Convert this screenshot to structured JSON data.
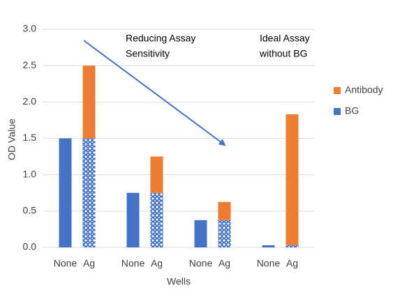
{
  "chart_data": {
    "type": "stacked_bar",
    "categories": [
      "None",
      "Ag",
      "None",
      "Ag",
      "None",
      "Ag",
      "None",
      "Ag"
    ],
    "series": [
      {
        "name": "BG",
        "color": "#4472c4",
        "values": [
          1.5,
          1.5,
          0.75,
          0.75,
          0.375,
          0.375,
          0.03,
          0.03
        ]
      },
      {
        "name": "Antibody",
        "color": "#ed7d31",
        "values": [
          null,
          1.0,
          null,
          0.5,
          null,
          0.25,
          null,
          1.8
        ]
      }
    ],
    "y_label": "OD Value",
    "x_label": "Wells",
    "ylim": [
      0,
      3
    ],
    "yticks": [
      {
        "value": 0,
        "label": "0.0"
      },
      0.5,
      {
        "value": 1,
        "label": "1.0"
      },
      1.5,
      {
        "value": 2,
        "label": "2.0"
      },
      2.5,
      {
        "value": 3,
        "label": "3.0"
      }
    ],
    "grid": true,
    "legend": "right",
    "annotations": [
      {
        "lines": [
          "Reducing Assay",
          "Sensitivity"
        ]
      },
      {
        "lines": [
          "Ideal Assay",
          "without BG"
        ]
      }
    ]
  }
}
